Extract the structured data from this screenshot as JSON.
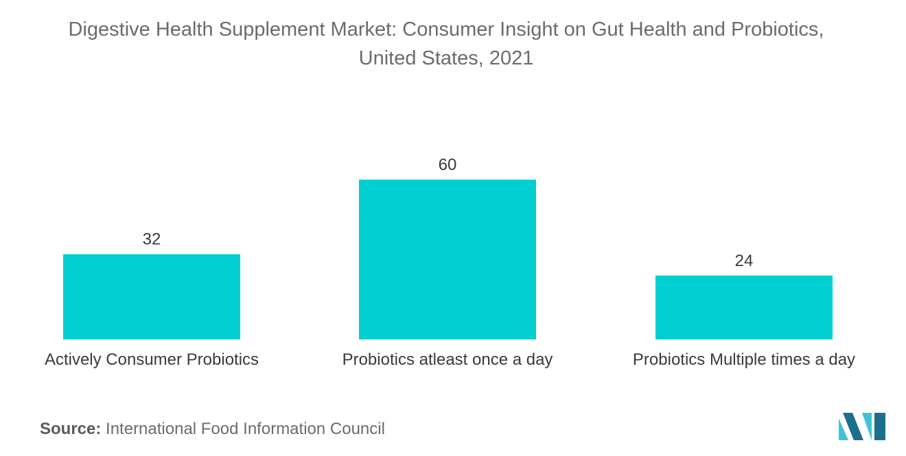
{
  "title": {
    "line1": "Digestive Health Supplement Market: Consumer Insight on Gut Health and Probiotics,",
    "line2": "United States, 2021"
  },
  "source": {
    "label": "Source:",
    "text": "International Food Information Council"
  },
  "colors": {
    "bar": "#00CED1",
    "title_text": "#6b6b6b",
    "label_text": "#3a3a3a",
    "logo_dark": "#1b6f8c",
    "logo_light": "#3fc3d3"
  },
  "chart_data": {
    "type": "bar",
    "title": "Digestive Health Supplement Market: Consumer Insight on Gut Health and Probiotics, United States, 2021",
    "categories": [
      "Actively Consumer Probiotics",
      "Probiotics atleast once a day",
      "Probiotics Multiple times a day"
    ],
    "values": [
      32,
      60,
      24
    ],
    "xlabel": "",
    "ylabel": "",
    "ylim": [
      0,
      60
    ],
    "grid": false,
    "legend": "none",
    "data_labels": true
  }
}
